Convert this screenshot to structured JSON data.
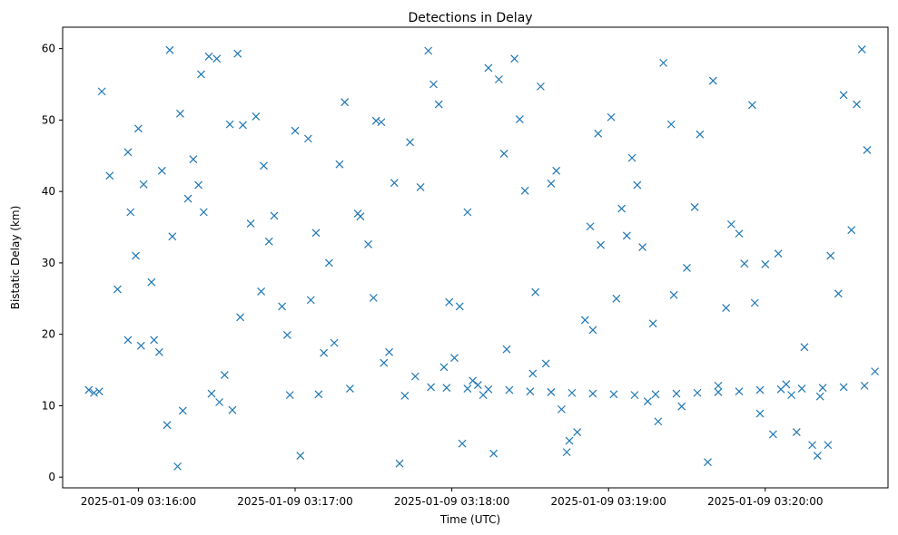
{
  "chart_data": {
    "type": "scatter",
    "title": "Detections in Delay",
    "xlabel": "Time (UTC)",
    "ylabel": "Bistatic Delay (km)",
    "x_tick_labels": [
      "2025-01-09 03:16:00",
      "2025-01-09 03:17:00",
      "2025-01-09 03:18:00",
      "2025-01-09 03:19:00",
      "2025-01-09 03:20:00"
    ],
    "y_ticks": [
      0,
      10,
      20,
      30,
      40,
      50,
      60
    ],
    "xlim": [
      "2025-01-09 03:15:31",
      "2025-01-09 03:20:47"
    ],
    "ylim": [
      -1.5,
      63
    ],
    "marker": "x",
    "color": "#1f77b4",
    "grid": false,
    "series": [
      {
        "x": [
          "03:15:41",
          "03:15:43",
          "03:15:45",
          "03:15:46",
          "03:15:49",
          "03:15:52",
          "03:15:56",
          "03:15:56",
          "03:16:00",
          "03:16:02",
          "03:16:05",
          "03:16:08",
          "03:16:11",
          "03:16:15",
          "03:16:17",
          "03:16:19",
          "03:16:23",
          "03:16:25",
          "03:16:28",
          "03:16:30",
          "03:16:33",
          "03:16:36",
          "03:16:38",
          "03:16:40",
          "03:16:45",
          "03:16:50",
          "03:16:55",
          "03:17:00",
          "03:17:02",
          "03:17:05",
          "03:17:08",
          "03:17:13",
          "03:17:17",
          "03:17:21",
          "03:17:25",
          "03:17:30",
          "03:17:34",
          "03:17:38",
          "03:17:42",
          "03:17:46",
          "03:17:51",
          "03:17:55",
          "03:17:59",
          "03:18:03",
          "03:18:08",
          "03:18:12",
          "03:18:16",
          "03:18:20",
          "03:18:24",
          "03:18:28",
          "03:18:32",
          "03:18:36",
          "03:18:40",
          "03:18:44",
          "03:18:48",
          "03:18:53",
          "03:18:57",
          "03:19:01",
          "03:19:05",
          "03:19:09",
          "03:19:13",
          "03:19:17",
          "03:19:21",
          "03:19:25",
          "03:19:30",
          "03:19:35",
          "03:19:40",
          "03:19:45",
          "03:19:50",
          "03:19:55",
          "03:20:00",
          "03:20:05",
          "03:20:10",
          "03:20:15",
          "03:20:20",
          "03:20:25",
          "03:20:30",
          "03:20:35",
          "03:20:39",
          "03:15:57",
          "03:16:01",
          "03:16:09",
          "03:16:13",
          "03:16:21",
          "03:16:27",
          "03:16:35",
          "03:16:43",
          "03:16:52",
          "03:16:58",
          "03:17:06",
          "03:17:15",
          "03:17:24",
          "03:17:33",
          "03:17:44",
          "03:17:53",
          "03:18:01",
          "03:18:10",
          "03:18:21",
          "03:18:34",
          "03:18:45",
          "03:18:56",
          "03:19:07",
          "03:19:19",
          "03:19:33",
          "03:19:47",
          "03:19:58",
          "03:20:12",
          "03:20:24",
          "03:20:33",
          "03:16:06",
          "03:16:31",
          "03:16:47",
          "03:17:11",
          "03:17:28",
          "03:17:48",
          "03:18:06",
          "03:18:26",
          "03:18:42",
          "03:19:03",
          "03:19:24",
          "03:19:42",
          "03:20:03",
          "03:20:18",
          "03:20:37",
          "03:15:59",
          "03:16:16",
          "03:16:39",
          "03:16:57",
          "03:17:19",
          "03:17:36",
          "03:17:57",
          "03:18:14",
          "03:18:38",
          "03:18:51",
          "03:19:15",
          "03:19:38",
          "03:19:52",
          "03:20:08",
          "03:20:28",
          "03:16:12",
          "03:16:24",
          "03:16:48",
          "03:17:09",
          "03:17:31",
          "03:17:40",
          "03:18:04",
          "03:18:18",
          "03:18:31",
          "03:18:54",
          "03:19:11",
          "03:19:28",
          "03:19:56",
          "03:20:21",
          "03:20:42",
          "03:17:52",
          "03:17:58",
          "03:18:06",
          "03:18:14",
          "03:18:22",
          "03:18:30",
          "03:18:38",
          "03:18:46",
          "03:18:54",
          "03:19:02",
          "03:19:10",
          "03:19:18",
          "03:19:26",
          "03:19:34",
          "03:19:42",
          "03:19:50",
          "03:19:58",
          "03:20:06",
          "03:20:14",
          "03:20:22",
          "03:20:30",
          "03:20:38"
        ],
        "y": [
          12.2,
          11.8,
          12.0,
          54.0,
          42.2,
          26.3,
          19.2,
          45.5,
          48.8,
          41.0,
          27.3,
          17.5,
          7.3,
          1.5,
          9.3,
          39.0,
          40.9,
          37.1,
          11.7,
          58.6,
          14.3,
          9.4,
          59.3,
          49.3,
          50.5,
          33.0,
          23.9,
          48.5,
          3.0,
          47.4,
          34.2,
          30.0,
          43.8,
          12.4,
          36.5,
          25.1,
          16.0,
          41.2,
          11.4,
          14.1,
          59.7,
          52.2,
          24.5,
          23.9,
          13.5,
          11.5,
          3.3,
          45.3,
          58.6,
          40.1,
          25.9,
          15.9,
          42.9,
          3.5,
          6.3,
          35.1,
          32.5,
          50.4,
          37.6,
          44.7,
          32.2,
          21.5,
          58.0,
          25.5,
          29.3,
          48.0,
          55.5,
          23.7,
          34.1,
          52.1,
          29.8,
          31.3,
          11.5,
          18.2,
          3.0,
          31.0,
          53.5,
          52.2,
          45.8,
          37.1,
          18.4,
          42.9,
          33.7,
          44.5,
          58.9,
          49.4,
          35.5,
          36.6,
          11.5,
          24.8,
          18.8,
          36.9,
          49.7,
          46.9,
          55.0,
          16.7,
          12.9,
          17.9,
          54.7,
          5.1,
          48.1,
          33.8,
          7.8,
          37.8,
          35.4,
          8.9,
          6.3,
          4.5,
          34.6,
          19.2,
          10.5,
          26.0,
          17.4,
          32.6,
          40.6,
          37.1,
          50.1,
          9.5,
          25.0,
          49.4,
          12.8,
          6.0,
          4.5,
          59.9,
          31.0,
          50.9,
          22.4,
          19.9,
          52.5,
          17.5,
          15.4,
          57.3,
          41.1,
          22.0,
          10.6,
          2.1,
          29.9,
          13.0,
          25.7,
          59.8,
          56.4,
          43.6,
          11.6,
          49.9,
          1.9,
          4.7,
          55.7,
          14.5,
          20.6,
          40.9,
          9.9,
          24.4,
          11.3,
          14.8,
          12.6,
          12.5,
          12.4,
          12.3,
          12.2,
          12.0,
          11.9,
          11.8,
          11.7,
          11.6,
          11.5,
          11.6,
          11.7,
          11.8,
          11.9,
          12.0,
          12.2,
          12.3,
          12.4,
          12.5,
          12.6,
          12.8
        ]
      }
    ]
  }
}
